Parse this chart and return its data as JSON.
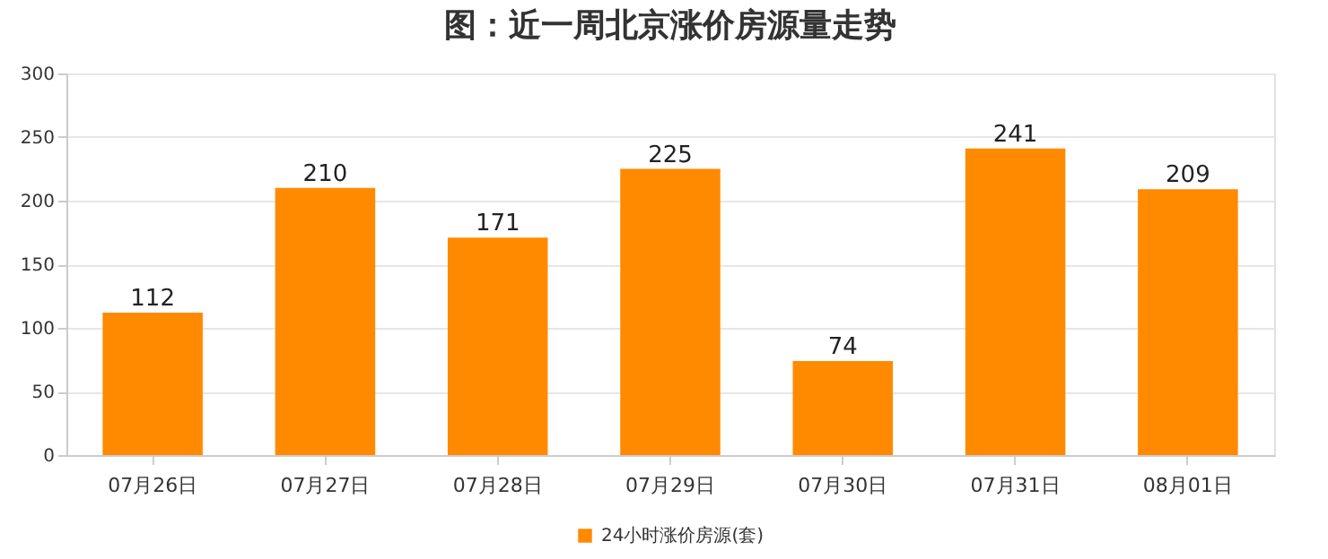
{
  "chart_data": {
    "type": "bar",
    "title": "图：近一周北京涨价房源量走势",
    "categories": [
      "07月26日",
      "07月27日",
      "07月28日",
      "07月29日",
      "07月30日",
      "07月31日",
      "08月01日"
    ],
    "series": [
      {
        "name": "24小时涨价房源(套)",
        "color": "#ff8a00",
        "values": [
          112,
          210,
          171,
          225,
          74,
          241,
          209
        ]
      }
    ],
    "ylim": [
      0,
      300
    ],
    "yticks": [
      0,
      50,
      100,
      150,
      200,
      250,
      300
    ],
    "grid": "y",
    "legend": "bottom",
    "data_labels": true
  }
}
